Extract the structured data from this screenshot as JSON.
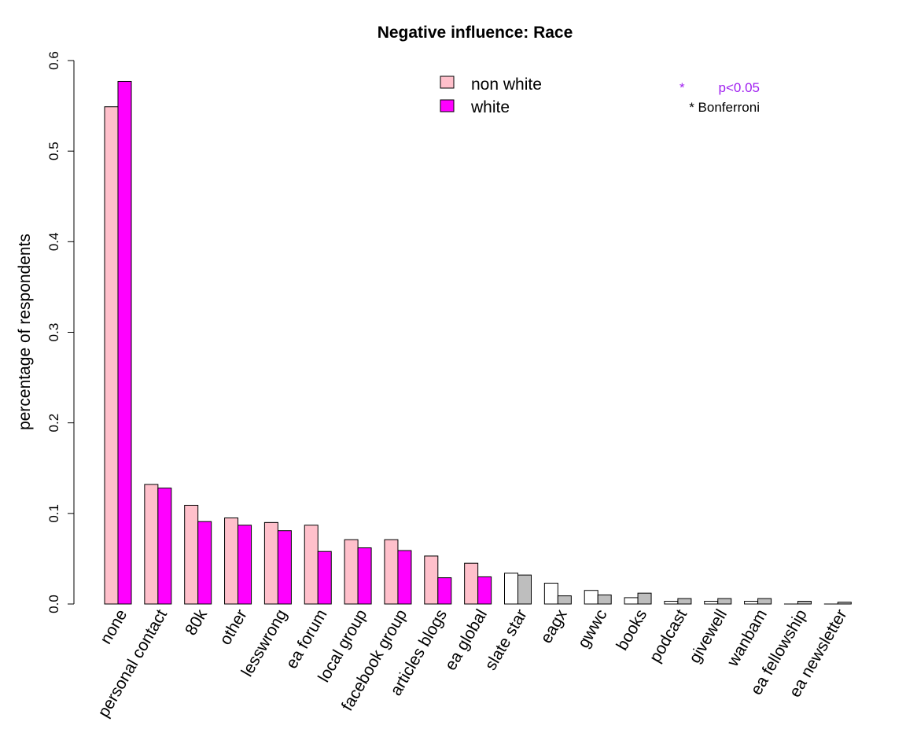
{
  "chart_data": {
    "type": "bar",
    "title": "Negative influence: Race",
    "xlabel": "",
    "ylabel": "percentage of respondents",
    "ylim": [
      0,
      0.6
    ],
    "yticks": [
      "0.0",
      "0.1",
      "0.2",
      "0.3",
      "0.4",
      "0.5",
      "0.6"
    ],
    "categories": [
      "none",
      "personal contact",
      "80k",
      "other",
      "lesswrong",
      "ea forum",
      "local group",
      "facebook group",
      "articles blogs",
      "ea global",
      "slate star",
      "eagx",
      "gwwc",
      "books",
      "podcast",
      "givewell",
      "wanbam",
      "ea fellowship",
      "ea newsletter"
    ],
    "series": [
      {
        "name": "non white",
        "color": "#ffc0cb",
        "values": [
          0.549,
          0.132,
          0.109,
          0.095,
          0.09,
          0.087,
          0.071,
          0.071,
          0.053,
          0.045,
          0.034,
          0.023,
          0.015,
          0.007,
          0.003,
          0.003,
          0.003,
          0.0,
          0.0
        ]
      },
      {
        "name": "white",
        "color": "#ff00ff",
        "values": [
          0.577,
          0.128,
          0.091,
          0.087,
          0.081,
          0.058,
          0.062,
          0.059,
          0.029,
          0.03,
          0.032,
          0.009,
          0.01,
          0.012,
          0.006,
          0.006,
          0.006,
          0.003,
          0.002
        ]
      }
    ],
    "not_significant_colors": [
      "#ffffff",
      "#bebebe"
    ],
    "significant_count": 10,
    "grid": false,
    "legend_position": "top-center",
    "significance_legend": {
      "marker": "*",
      "p_label": "p<0.05",
      "bonferroni_label": "* Bonferroni",
      "p_color": "#a020f0"
    }
  }
}
